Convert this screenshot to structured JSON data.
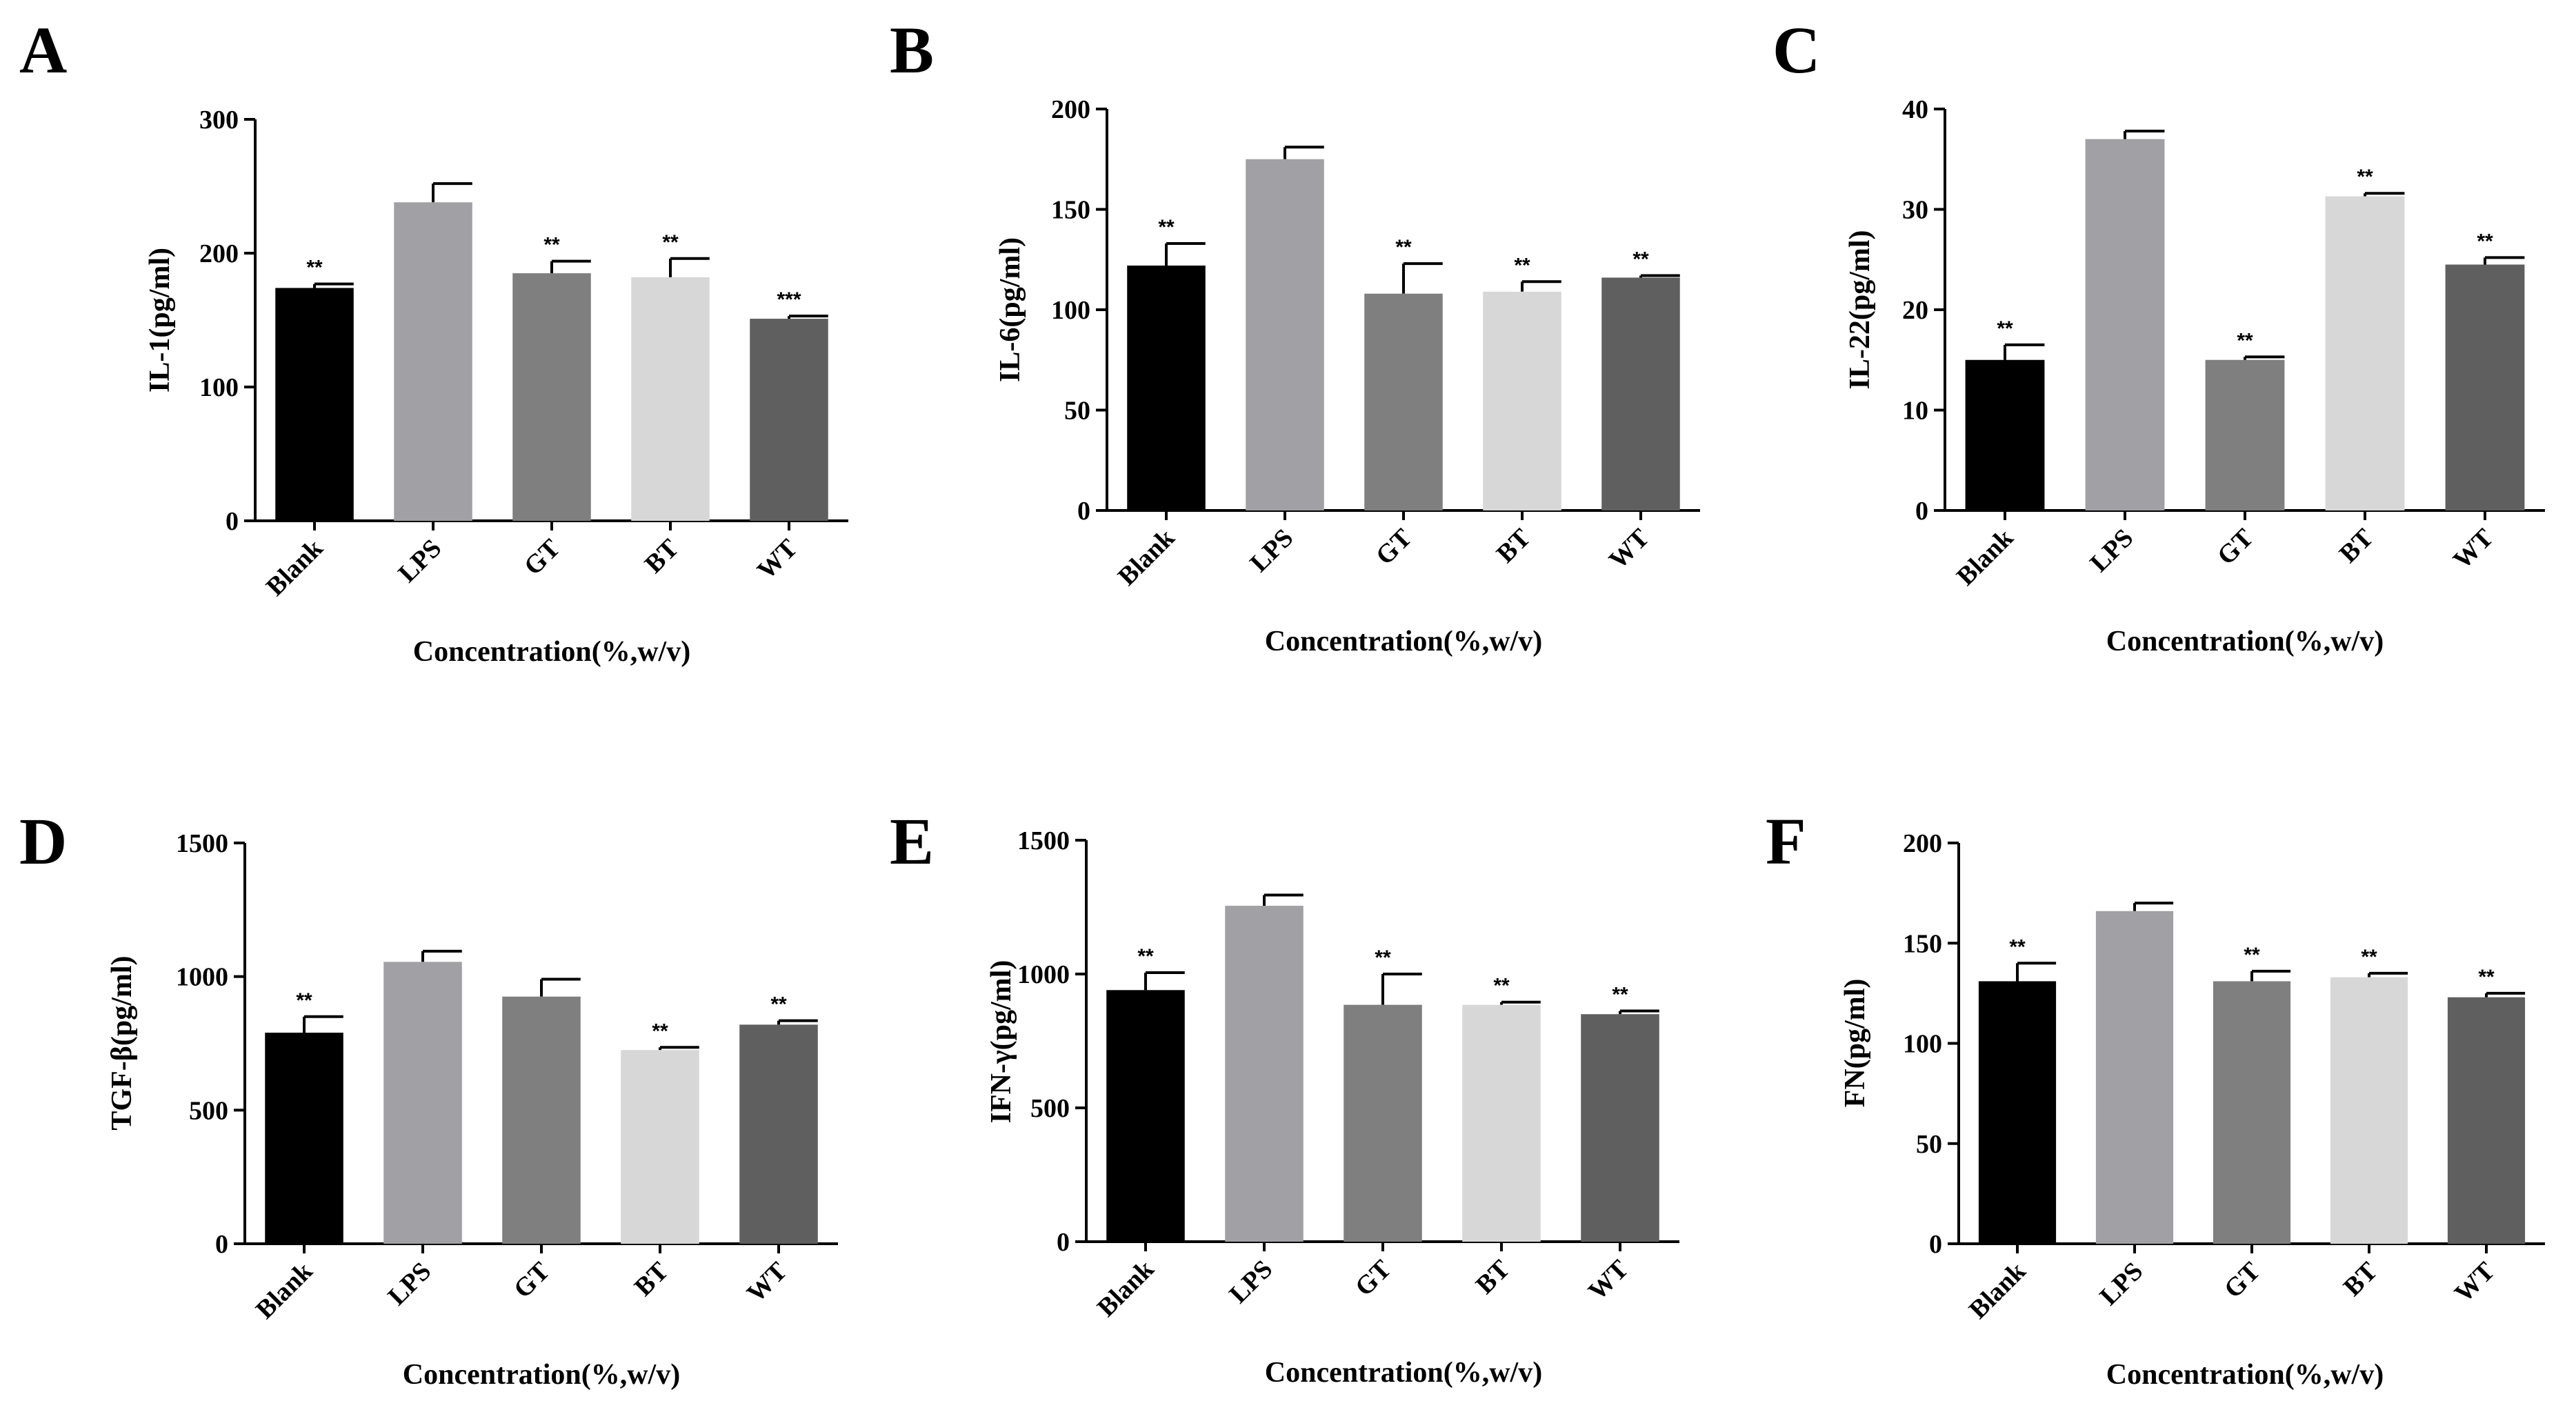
{
  "chart_data": [
    {
      "panel": "A",
      "type": "bar",
      "categories": [
        "Blank",
        "LPS",
        "GT",
        "BT",
        "WT"
      ],
      "values": [
        174,
        238,
        185,
        182,
        151
      ],
      "errors": [
        3,
        14,
        9,
        14,
        2
      ],
      "significance": [
        "**",
        "",
        "**",
        "**",
        "***"
      ],
      "colors": [
        "#000000",
        "#a0a0a5",
        "#7f7f7f",
        "#d7d7d7",
        "#5f5f5f"
      ],
      "ylabel": "IL-1(pg/ml)",
      "xlabel": "Concentration(%,w/v)",
      "ylim": [
        0,
        300
      ],
      "yticks": [
        0,
        100,
        200,
        300
      ]
    },
    {
      "panel": "B",
      "type": "bar",
      "categories": [
        "Blank",
        "LPS",
        "GT",
        "BT",
        "WT"
      ],
      "values": [
        122,
        175,
        108,
        109,
        116
      ],
      "errors": [
        11,
        6,
        15,
        5,
        1
      ],
      "significance": [
        "**",
        "",
        "**",
        "**",
        "**"
      ],
      "colors": [
        "#000000",
        "#a0a0a5",
        "#7f7f7f",
        "#d7d7d7",
        "#5f5f5f"
      ],
      "ylabel": "IL-6(pg/ml)",
      "xlabel": "Concentration(%,w/v)",
      "ylim": [
        0,
        200
      ],
      "yticks": [
        0,
        50,
        100,
        150,
        200
      ]
    },
    {
      "panel": "C",
      "type": "bar",
      "categories": [
        "Blank",
        "LPS",
        "GT",
        "BT",
        "WT"
      ],
      "values": [
        15,
        37,
        15,
        31.3,
        24.5
      ],
      "errors": [
        1.5,
        0.8,
        0.3,
        0.3,
        0.7
      ],
      "significance": [
        "**",
        "",
        "**",
        "**",
        "**"
      ],
      "colors": [
        "#000000",
        "#a0a0a5",
        "#7f7f7f",
        "#d7d7d7",
        "#5f5f5f"
      ],
      "ylabel": "IL-22(pg/ml)",
      "xlabel": "Concentration(%,w/v)",
      "ylim": [
        0,
        40
      ],
      "yticks": [
        0,
        10,
        20,
        30,
        40
      ]
    },
    {
      "panel": "D",
      "type": "bar",
      "categories": [
        "Blank",
        "LPS",
        "GT",
        "BT",
        "WT"
      ],
      "values": [
        790,
        1055,
        925,
        725,
        820
      ],
      "errors": [
        60,
        40,
        65,
        10,
        15
      ],
      "significance": [
        "**",
        "",
        "",
        "**",
        "**"
      ],
      "colors": [
        "#000000",
        "#a0a0a5",
        "#7f7f7f",
        "#d7d7d7",
        "#5f5f5f"
      ],
      "ylabel": "TGF-β(pg/ml)",
      "xlabel": "Concentration(%,w/v)",
      "ylim": [
        0,
        1500
      ],
      "yticks": [
        0,
        500,
        1000,
        1500
      ]
    },
    {
      "panel": "E",
      "type": "bar",
      "categories": [
        "Blank",
        "LPS",
        "GT",
        "BT",
        "WT"
      ],
      "values": [
        940,
        1255,
        885,
        885,
        850
      ],
      "errors": [
        65,
        40,
        115,
        10,
        12
      ],
      "significance": [
        "**",
        "",
        "**",
        "**",
        "**"
      ],
      "colors": [
        "#000000",
        "#a0a0a5",
        "#7f7f7f",
        "#d7d7d7",
        "#5f5f5f"
      ],
      "ylabel": "IFN-γ(pg/ml)",
      "xlabel": "Concentration(%,w/v)",
      "ylim": [
        0,
        1500
      ],
      "yticks": [
        0,
        500,
        1000,
        1500
      ]
    },
    {
      "panel": "F",
      "type": "bar",
      "categories": [
        "Blank",
        "LPS",
        "GT",
        "BT",
        "WT"
      ],
      "values": [
        131,
        166,
        131,
        133,
        123
      ],
      "errors": [
        9,
        4,
        5,
        2,
        2
      ],
      "significance": [
        "**",
        "",
        "**",
        "**",
        "**"
      ],
      "colors": [
        "#000000",
        "#a0a0a5",
        "#7f7f7f",
        "#d7d7d7",
        "#5f5f5f"
      ],
      "ylabel": "FN(pg/ml)",
      "xlabel": "Concentration(%,w/v)",
      "ylim": [
        0,
        200
      ],
      "yticks": [
        0,
        50,
        100,
        150,
        200
      ]
    }
  ]
}
